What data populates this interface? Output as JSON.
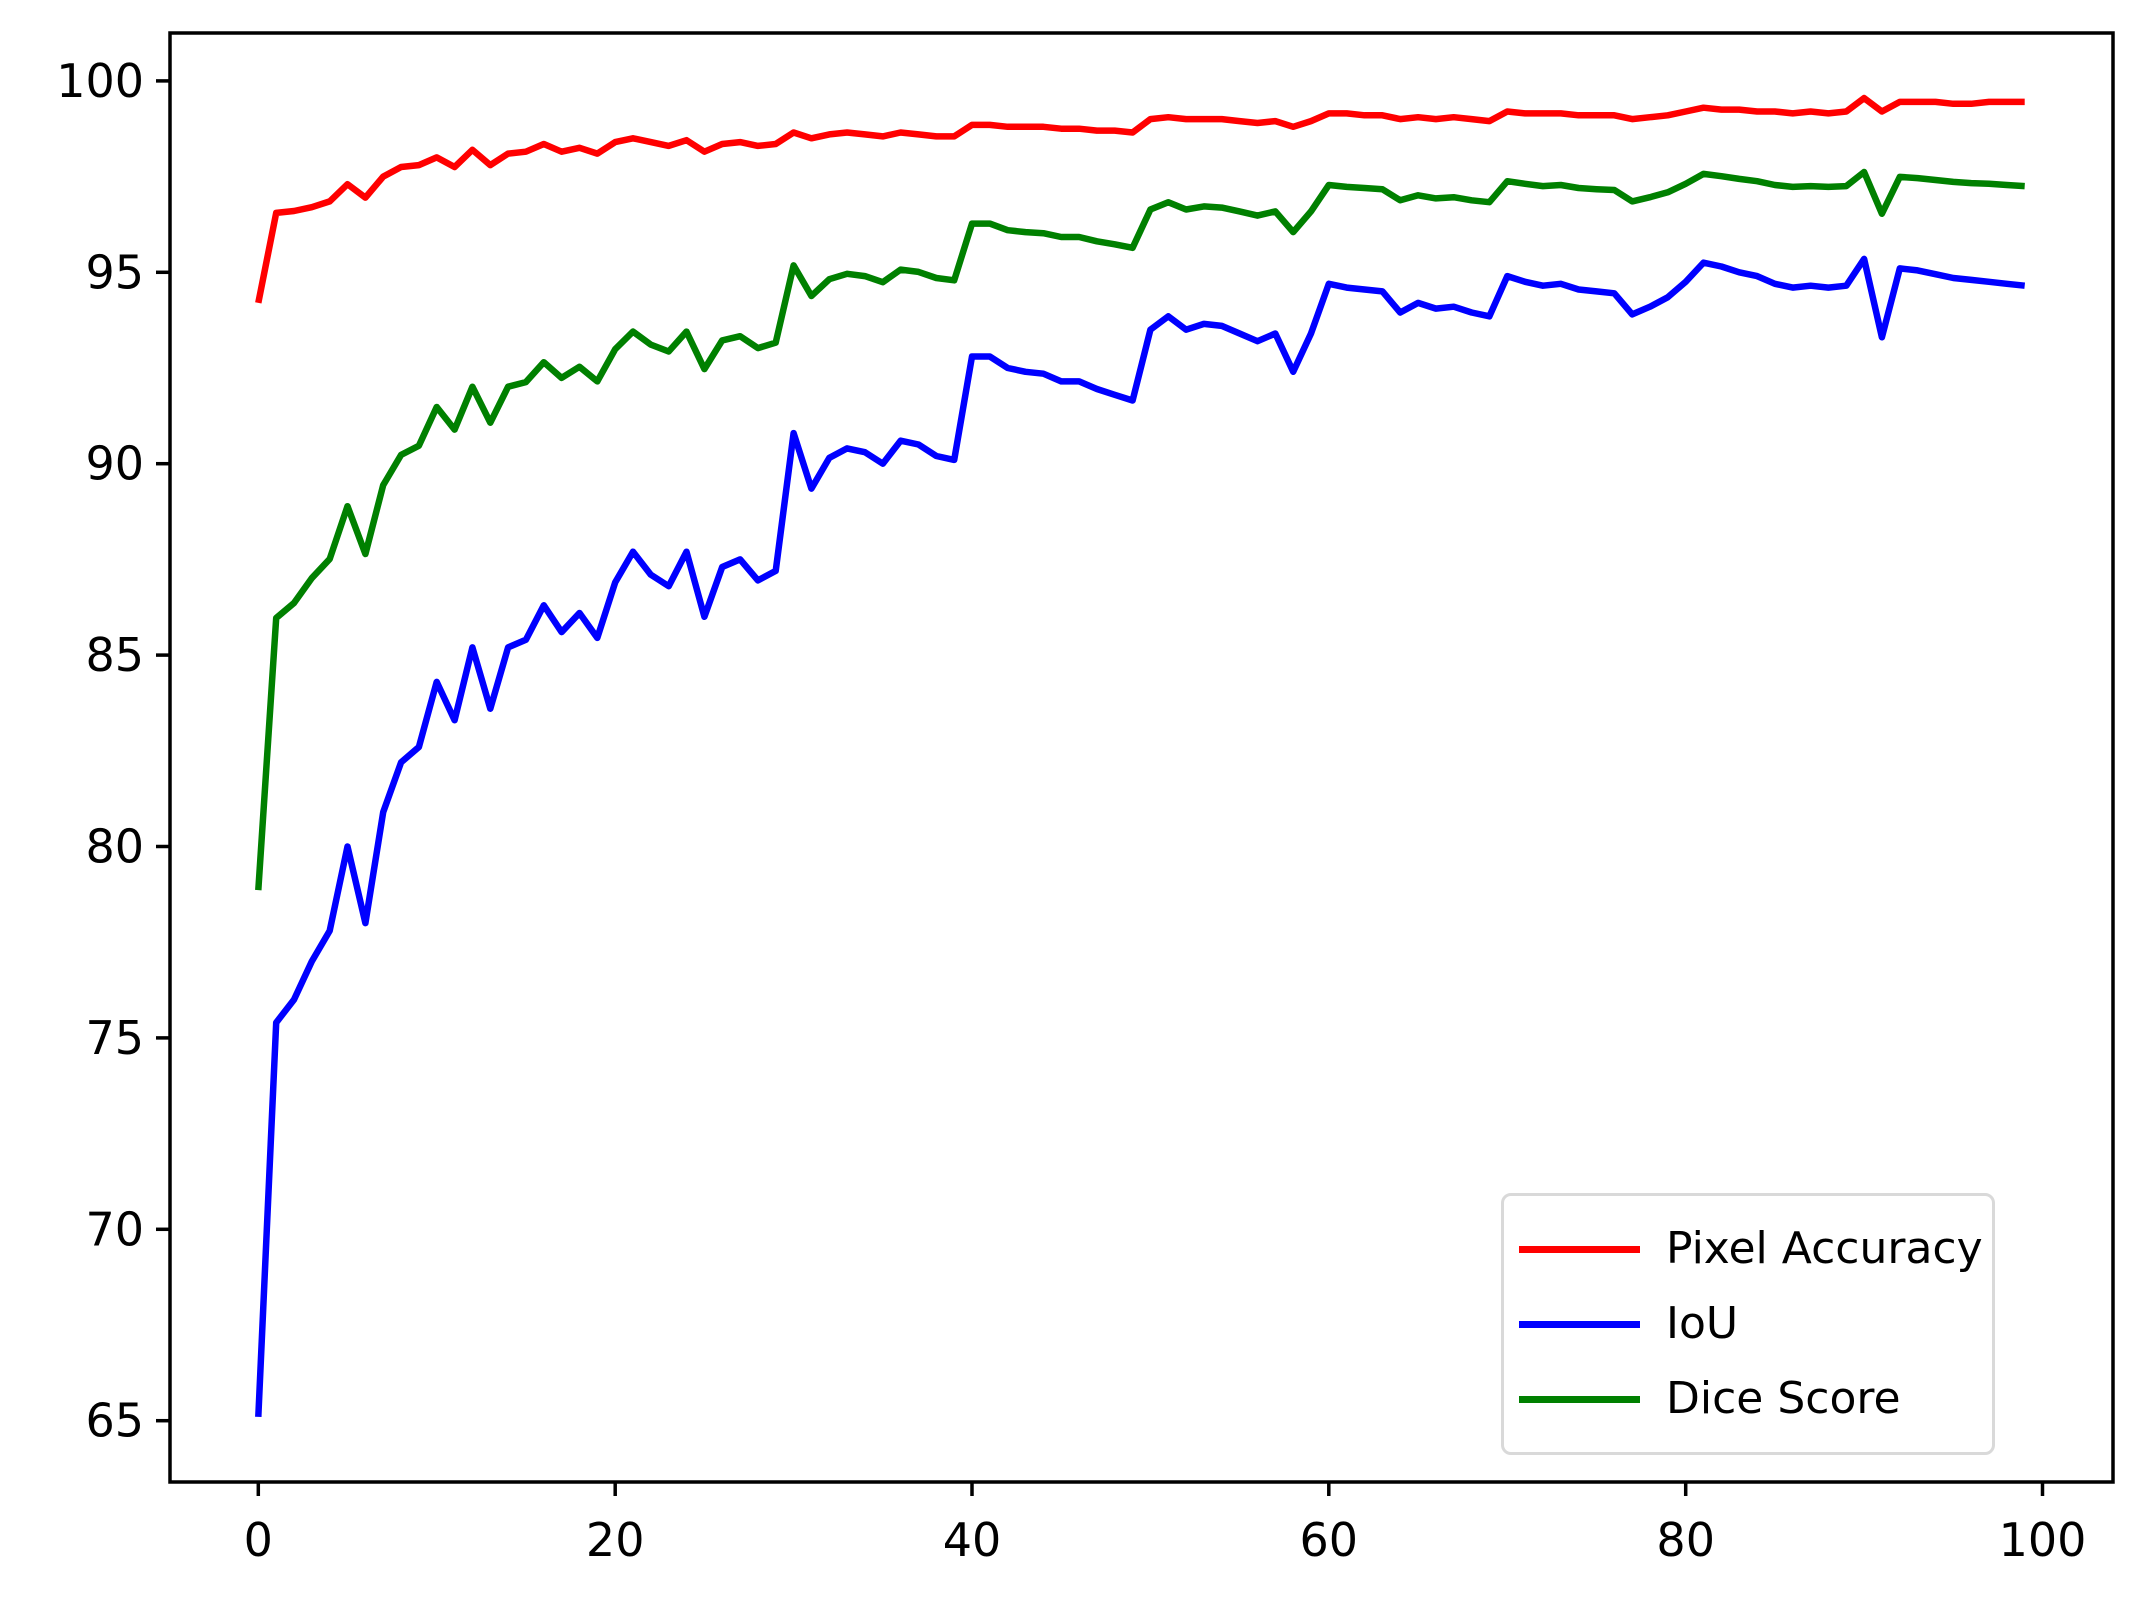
{
  "window": {
    "background": "#ffffff"
  },
  "chart_data": {
    "type": "line",
    "title": "",
    "xlabel": "",
    "ylabel": "",
    "grid": false,
    "x": [
      0,
      1,
      2,
      3,
      4,
      5,
      6,
      7,
      8,
      9,
      10,
      11,
      12,
      13,
      14,
      15,
      16,
      17,
      18,
      19,
      20,
      21,
      22,
      23,
      24,
      25,
      26,
      27,
      28,
      29,
      30,
      31,
      32,
      33,
      34,
      35,
      36,
      37,
      38,
      39,
      40,
      41,
      42,
      43,
      44,
      45,
      46,
      47,
      48,
      49,
      50,
      51,
      52,
      53,
      54,
      55,
      56,
      57,
      58,
      59,
      60,
      61,
      62,
      63,
      64,
      65,
      66,
      67,
      68,
      69,
      70,
      71,
      72,
      73,
      74,
      75,
      76,
      77,
      78,
      79,
      80,
      81,
      82,
      83,
      84,
      85,
      86,
      87,
      88,
      89,
      90,
      91,
      92,
      93,
      94,
      95,
      96,
      97,
      98,
      99
    ],
    "series": [
      {
        "name": "Pixel Accuracy",
        "color": "#ff0000",
        "values": [
          94.2,
          96.55,
          96.6,
          96.7,
          96.85,
          97.3,
          96.95,
          97.5,
          97.75,
          97.8,
          98.0,
          97.75,
          98.2,
          97.8,
          98.1,
          98.15,
          98.35,
          98.15,
          98.25,
          98.1,
          98.4,
          98.5,
          98.4,
          98.3,
          98.45,
          98.15,
          98.35,
          98.4,
          98.3,
          98.35,
          98.65,
          98.5,
          98.6,
          98.65,
          98.6,
          98.55,
          98.65,
          98.6,
          98.55,
          98.55,
          98.85,
          98.85,
          98.8,
          98.8,
          98.8,
          98.75,
          98.75,
          98.7,
          98.7,
          98.65,
          99.0,
          99.05,
          99.0,
          99.0,
          99.0,
          98.95,
          98.9,
          98.95,
          98.8,
          98.95,
          99.15,
          99.15,
          99.1,
          99.1,
          99.0,
          99.05,
          99.0,
          99.05,
          99.0,
          98.95,
          99.2,
          99.15,
          99.15,
          99.15,
          99.1,
          99.1,
          99.1,
          99.0,
          99.05,
          99.1,
          99.2,
          99.3,
          99.25,
          99.25,
          99.2,
          99.2,
          99.15,
          99.2,
          99.15,
          99.2,
          99.55,
          99.2,
          99.45,
          99.45,
          99.45,
          99.4,
          99.4,
          99.45,
          99.45,
          99.45
        ]
      },
      {
        "name": "IoU",
        "color": "#0000ff",
        "values": [
          65.1,
          75.4,
          76.0,
          77.0,
          77.8,
          80.0,
          78.0,
          80.9,
          82.2,
          82.6,
          84.3,
          83.3,
          85.2,
          83.6,
          85.2,
          85.4,
          86.3,
          85.6,
          86.1,
          85.45,
          86.9,
          87.7,
          87.1,
          86.8,
          87.7,
          86.0,
          87.3,
          87.5,
          86.95,
          87.2,
          90.8,
          89.35,
          90.15,
          90.4,
          90.3,
          90.0,
          90.6,
          90.5,
          90.2,
          90.1,
          92.8,
          92.8,
          92.5,
          92.4,
          92.35,
          92.15,
          92.15,
          91.95,
          91.8,
          91.65,
          93.5,
          93.85,
          93.5,
          93.65,
          93.6,
          93.4,
          93.2,
          93.4,
          92.4,
          93.4,
          94.7,
          94.6,
          94.55,
          94.5,
          93.95,
          94.2,
          94.05,
          94.1,
          93.95,
          93.85,
          94.9,
          94.75,
          94.65,
          94.7,
          94.55,
          94.5,
          94.45,
          93.9,
          94.1,
          94.35,
          94.75,
          95.25,
          95.15,
          95.0,
          94.9,
          94.7,
          94.6,
          94.65,
          94.6,
          94.65,
          95.35,
          93.3,
          95.1,
          95.05,
          94.95,
          94.85,
          94.8,
          94.75,
          94.7,
          94.65
        ]
      },
      {
        "name": "Dice Score",
        "color": "#008000",
        "values": [
          78.86,
          85.97,
          86.36,
          87.01,
          87.51,
          88.89,
          87.64,
          89.44,
          90.23,
          90.47,
          91.48,
          90.89,
          92.01,
          91.07,
          92.01,
          92.13,
          92.65,
          92.24,
          92.53,
          92.15,
          92.99,
          93.45,
          93.11,
          92.93,
          93.45,
          92.47,
          93.22,
          93.33,
          93.02,
          93.16,
          95.18,
          94.38,
          94.82,
          94.96,
          94.9,
          94.74,
          95.07,
          95.01,
          94.85,
          94.79,
          96.27,
          96.27,
          96.1,
          96.05,
          96.02,
          95.92,
          95.92,
          95.81,
          95.73,
          95.64,
          96.64,
          96.83,
          96.64,
          96.72,
          96.69,
          96.59,
          96.48,
          96.59,
          96.05,
          96.59,
          97.28,
          97.23,
          97.2,
          97.17,
          96.88,
          97.01,
          96.93,
          96.96,
          96.88,
          96.83,
          97.38,
          97.31,
          97.25,
          97.28,
          97.2,
          97.17,
          97.15,
          96.85,
          96.96,
          97.09,
          97.31,
          97.57,
          97.51,
          97.44,
          97.38,
          97.28,
          97.23,
          97.25,
          97.23,
          97.25,
          97.62,
          96.53,
          97.49,
          97.46,
          97.41,
          97.36,
          97.33,
          97.31,
          97.28,
          97.25
        ]
      }
    ],
    "xlim": [
      -4.95,
      103.95
    ],
    "ylim": [
      63.4,
      101.25
    ],
    "x_ticks": [
      0,
      20,
      40,
      60,
      80,
      100
    ],
    "y_ticks": [
      65,
      70,
      75,
      80,
      85,
      90,
      95,
      100
    ],
    "axis_color": "#000000",
    "legend": {
      "position": "lower right"
    }
  }
}
